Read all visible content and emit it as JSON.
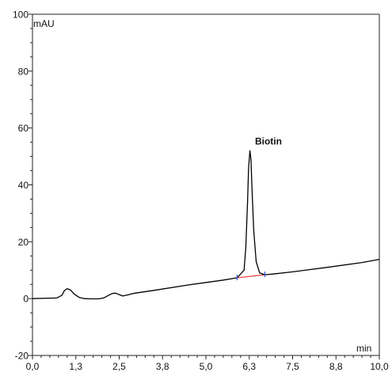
{
  "chart_data": {
    "type": "line",
    "title": "",
    "xlabel": "min",
    "ylabel": "mAU",
    "xlim": [
      0.0,
      10.0
    ],
    "ylim": [
      -20,
      100
    ],
    "x_ticks": [
      {
        "value": 0.0,
        "label": "0,0"
      },
      {
        "value": 1.25,
        "label": "1,3"
      },
      {
        "value": 2.5,
        "label": "2,5"
      },
      {
        "value": 3.75,
        "label": "3,8"
      },
      {
        "value": 5.0,
        "label": "5,0"
      },
      {
        "value": 6.25,
        "label": "6,3"
      },
      {
        "value": 7.5,
        "label": "7,5"
      },
      {
        "value": 8.75,
        "label": "8,8"
      },
      {
        "value": 10.0,
        "label": "10,0"
      }
    ],
    "y_ticks": [
      {
        "value": -20,
        "label": "-20"
      },
      {
        "value": 0,
        "label": "0"
      },
      {
        "value": 20,
        "label": "20"
      },
      {
        "value": 40,
        "label": "40"
      },
      {
        "value": 60,
        "label": "60"
      },
      {
        "value": 80,
        "label": "80"
      },
      {
        "value": 100,
        "label": "100"
      }
    ],
    "grid": false,
    "series": [
      {
        "color": "#000000",
        "x": [
          0.0,
          0.7,
          0.85,
          0.92,
          1.0,
          1.1,
          1.2,
          1.35,
          1.5,
          1.7,
          1.9,
          2.05,
          2.2,
          2.3,
          2.4,
          2.5,
          2.6,
          2.75,
          2.9,
          3.5,
          4.5,
          5.5,
          5.9,
          6.1,
          6.15,
          6.2,
          6.23,
          6.27,
          6.3,
          6.33,
          6.38,
          6.45,
          6.55,
          6.7,
          6.9,
          7.5,
          8.5,
          9.5,
          10.0
        ],
        "y": [
          0.0,
          0.2,
          1.2,
          2.8,
          3.5,
          3.0,
          1.6,
          0.4,
          0.0,
          -0.1,
          -0.1,
          0.2,
          1.2,
          1.8,
          1.9,
          1.4,
          0.9,
          1.3,
          1.8,
          2.9,
          4.8,
          6.5,
          7.3,
          10.0,
          18.0,
          34.0,
          46.0,
          52.0,
          49.0,
          38.0,
          24.0,
          13.0,
          9.0,
          8.4,
          8.6,
          9.4,
          11.0,
          12.7,
          13.8
        ]
      }
    ],
    "baseline": {
      "color": "#e53935",
      "x": [
        5.9,
        6.7
      ],
      "y": [
        7.3,
        8.4
      ]
    },
    "integration_marks": [
      {
        "x": 5.9,
        "y": 7.3,
        "color": "#3b5bdb"
      },
      {
        "x": 6.7,
        "y": 8.4,
        "color": "#3b5bdb"
      }
    ],
    "peak_labels": [
      {
        "text": "Biotin",
        "x": 6.3,
        "y": 52.0
      }
    ]
  }
}
